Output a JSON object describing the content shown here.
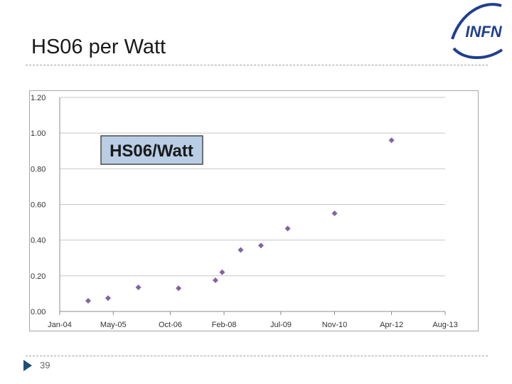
{
  "slide": {
    "title": "HS06 per Watt",
    "page_number": "39",
    "logo_text": "INFN"
  },
  "colors": {
    "marker": "#8064a2",
    "grid": "#c8c8c8",
    "axis_text": "#333333",
    "label_box_fill": "#b9cde5",
    "logo_blue": "#1f3f8f"
  },
  "icons": {
    "page_marker": "triangle-right-icon",
    "logo": "infn-logo"
  },
  "chart_data": {
    "type": "scatter",
    "title": "HS06/Watt",
    "xlabel": "",
    "ylabel": "",
    "x_tick_labels": [
      "Jan-04",
      "May-05",
      "Oct-06",
      "Feb-08",
      "Jul-09",
      "Nov-10",
      "Apr-12",
      "Aug-13"
    ],
    "x_tick_dates": [
      "2004-01-01",
      "2005-05-01",
      "2006-10-01",
      "2008-02-01",
      "2009-07-01",
      "2010-11-01",
      "2012-04-01",
      "2013-08-01"
    ],
    "y_tick_labels": [
      "0.00",
      "0.20",
      "0.40",
      "0.60",
      "0.80",
      "1.00",
      "1.20"
    ],
    "ylim": [
      0,
      1.2
    ],
    "xlim": [
      "2004-01-01",
      "2013-08-01"
    ],
    "grid": "horizontal",
    "legend": "none",
    "series": [
      {
        "points": [
          {
            "x": "2004-09-15",
            "y": 0.06
          },
          {
            "x": "2005-03-15",
            "y": 0.075
          },
          {
            "x": "2005-12-15",
            "y": 0.135
          },
          {
            "x": "2006-12-15",
            "y": 0.13
          },
          {
            "x": "2007-11-15",
            "y": 0.175
          },
          {
            "x": "2008-01-15",
            "y": 0.22
          },
          {
            "x": "2008-07-01",
            "y": 0.345
          },
          {
            "x": "2009-01-01",
            "y": 0.37
          },
          {
            "x": "2009-09-01",
            "y": 0.465
          },
          {
            "x": "2010-11-01",
            "y": 0.55
          },
          {
            "x": "2012-04-01",
            "y": 0.96
          }
        ]
      }
    ]
  }
}
